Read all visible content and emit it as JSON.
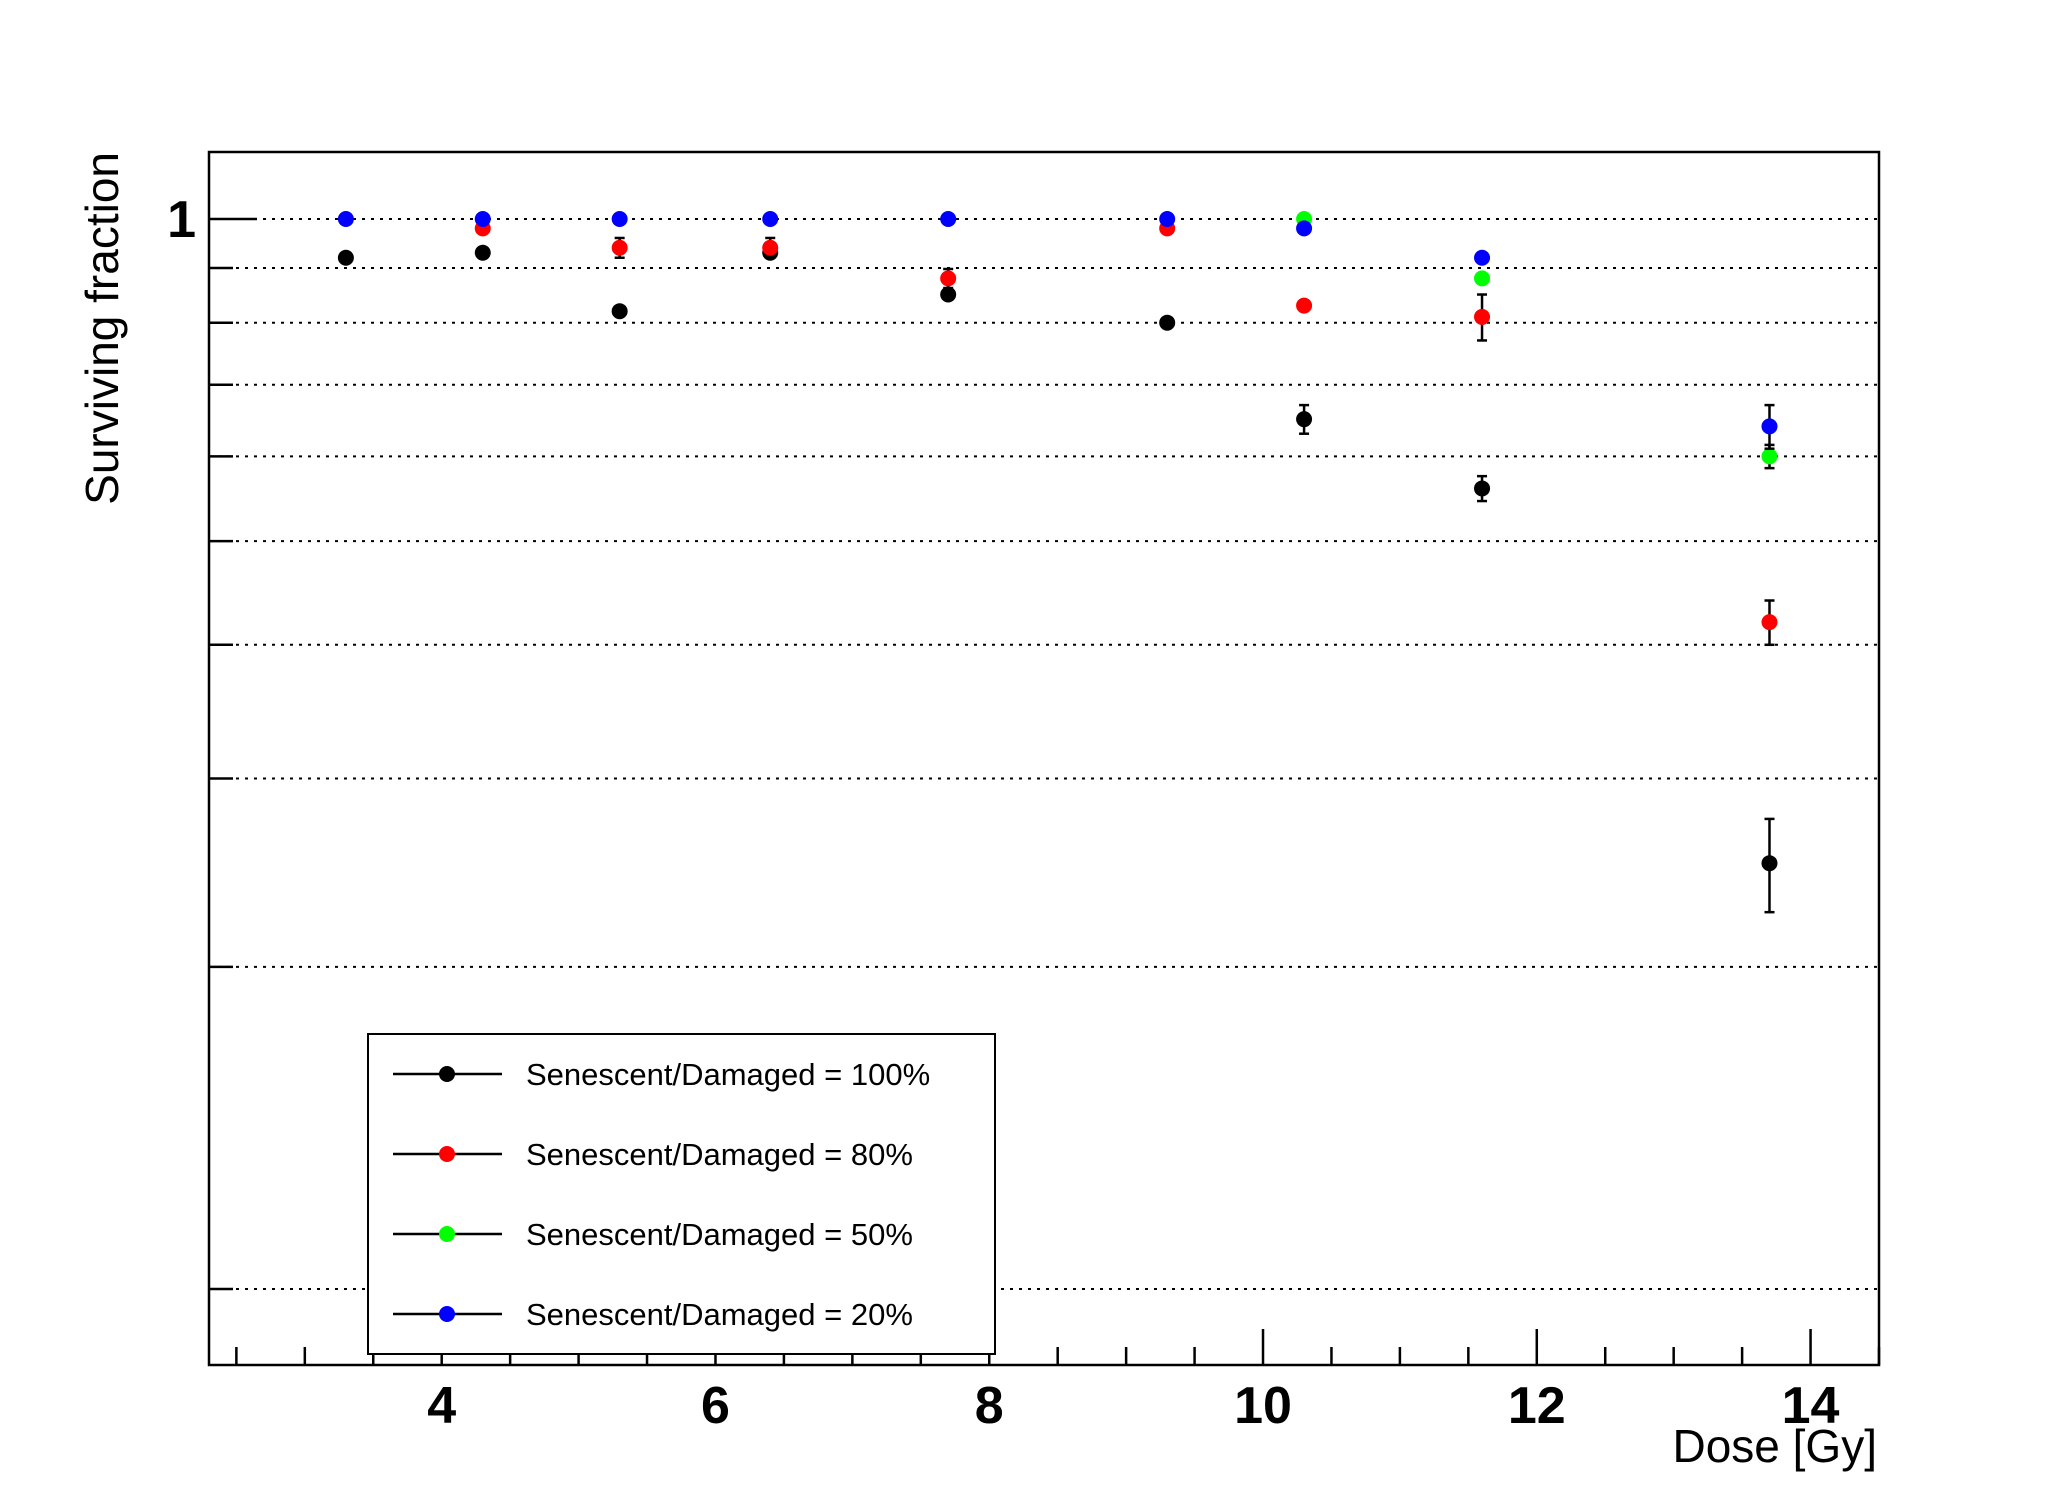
{
  "chart_data": {
    "type": "scatter",
    "title": "",
    "xlabel": "Dose [Gy]",
    "ylabel": "Surviving fraction",
    "xlim": [
      2.3,
      14.5
    ],
    "y_scale": "log",
    "grid": {
      "x": false,
      "y": true
    },
    "x_ticks": [
      4,
      6,
      8,
      10,
      12,
      14
    ],
    "y_tick_labels": [
      {
        "value": 1,
        "label": "1"
      }
    ],
    "legend": {
      "position": "bottom-left"
    },
    "series": [
      {
        "name": "Senescent/Damaged = 100%",
        "color": "#000000",
        "x": [
          3.3,
          4.3,
          5.3,
          6.4,
          7.7,
          9.3,
          10.3,
          11.6,
          13.7
        ],
        "y": [
          0.92,
          0.93,
          0.82,
          0.93,
          0.85,
          0.8,
          0.65,
          0.56,
          0.25
        ],
        "err": [
          0.01,
          0.005,
          0.005,
          0.005,
          0.01,
          0.012,
          0.02,
          0.015,
          0.025
        ]
      },
      {
        "name": "Senescent/Damaged = 80%",
        "color": "#ff0000",
        "x": [
          4.3,
          5.3,
          6.4,
          7.7,
          9.3,
          10.3,
          11.6,
          13.7
        ],
        "y": [
          0.98,
          0.94,
          0.94,
          0.88,
          0.98,
          0.83,
          0.81,
          0.42
        ],
        "err": [
          0.005,
          0.02,
          0.02,
          0.018,
          0.005,
          0.01,
          0.04,
          0.02
        ]
      },
      {
        "name": "Senescent/Damaged = 50%",
        "color": "#00ff00",
        "x": [
          10.3,
          11.6,
          13.7
        ],
        "y": [
          1.0,
          0.88,
          0.6
        ],
        "err": [
          0.005,
          0.005,
          0.015
        ]
      },
      {
        "name": "Senescent/Damaged = 20%",
        "color": "#0000ff",
        "x": [
          3.3,
          4.3,
          5.3,
          6.4,
          7.7,
          9.3,
          10.3,
          11.6,
          13.7
        ],
        "y": [
          1.0,
          1.0,
          1.0,
          1.0,
          1.0,
          1.0,
          0.98,
          0.92,
          0.64
        ],
        "err": [
          0.005,
          0.005,
          0.005,
          0.005,
          0.005,
          0.005,
          0.005,
          0.015,
          0.03
        ]
      }
    ]
  }
}
